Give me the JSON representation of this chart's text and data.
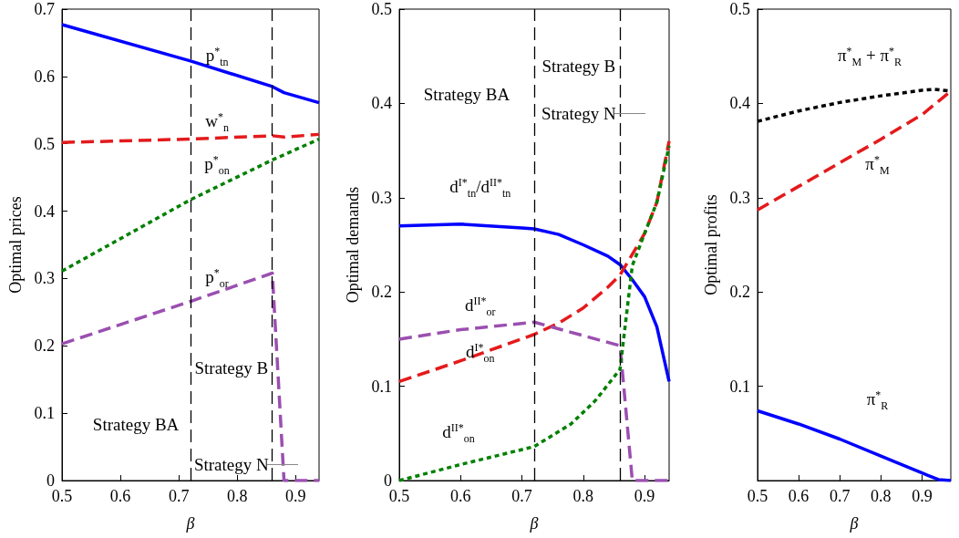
{
  "chart_data": [
    {
      "type": "line",
      "xlabel": "β",
      "ylabel": "Optimal prices",
      "xlim": [
        0.5,
        0.94
      ],
      "ylim": [
        0,
        0.7
      ],
      "xticks": [
        0.5,
        0.6,
        0.7,
        0.8,
        0.9
      ],
      "yticks": [
        0,
        0.1,
        0.2,
        0.3,
        0.4,
        0.5,
        0.6,
        0.7
      ],
      "grid": false,
      "legend": false,
      "marker": "none",
      "series": [
        {
          "name": "p$^{*}$$_{tn}$",
          "color": "#0000ff",
          "line_style": "solid",
          "x": [
            0.5,
            0.72,
            0.86,
            0.88,
            0.94
          ],
          "values": [
            0.677,
            0.623,
            0.585,
            0.576,
            0.561
          ]
        },
        {
          "name": "w$^{*}$$_{n}$",
          "color": "#e41a1c",
          "line_style": "dashed",
          "x": [
            0.5,
            0.72,
            0.86,
            0.88,
            0.94
          ],
          "values": [
            0.502,
            0.507,
            0.512,
            0.51,
            0.514
          ]
        },
        {
          "name": "p$^{*}$$_{on}$",
          "color": "#008000",
          "line_style": "dotted",
          "x": [
            0.5,
            0.72,
            0.86,
            0.94
          ],
          "values": [
            0.311,
            0.417,
            0.476,
            0.507
          ]
        },
        {
          "name": "p$^{*}$$_{or}$",
          "color": "#9b4fb0",
          "line_style": "dashed",
          "x": [
            0.5,
            0.72,
            0.86,
            0.88,
            0.94
          ],
          "values": [
            0.203,
            0.266,
            0.308,
            0,
            0
          ]
        }
      ],
      "ref_lines": [
        {
          "axis": "x",
          "value": 0.72,
          "color": "#000000",
          "line_style": "dashed"
        },
        {
          "axis": "x",
          "value": 0.86,
          "color": "#000000",
          "line_style": "dashed"
        }
      ],
      "annotations": [
        "Strategy BA",
        "Strategy B",
        "Strategy N"
      ]
    },
    {
      "type": "line",
      "xlabel": "β",
      "ylabel": "Optimal demands",
      "xlim": [
        0.5,
        0.94
      ],
      "ylim": [
        0,
        0.5
      ],
      "xticks": [
        0.5,
        0.6,
        0.7,
        0.8,
        0.9
      ],
      "yticks": [
        0,
        0.1,
        0.2,
        0.3,
        0.4,
        0.5
      ],
      "grid": false,
      "legend": false,
      "marker": "none",
      "series": [
        {
          "name": "d$^{I*}$$_{tn}$/d$^{II*}$$_{tn}$",
          "color": "#0000ff",
          "line_style": "solid",
          "x": [
            0.5,
            0.6,
            0.7,
            0.72,
            0.76,
            0.8,
            0.84,
            0.86,
            0.88,
            0.9,
            0.92,
            0.94
          ],
          "values": [
            0.27,
            0.272,
            0.268,
            0.267,
            0.261,
            0.25,
            0.238,
            0.229,
            0.213,
            0.195,
            0.163,
            0.105
          ]
        },
        {
          "name": "d$^{I*}$$_{on}$",
          "color": "#e41a1c",
          "line_style": "dashed",
          "x": [
            0.5,
            0.6,
            0.72,
            0.76,
            0.8,
            0.84,
            0.86,
            0.88,
            0.9,
            0.92,
            0.94
          ],
          "values": [
            0.105,
            0.127,
            0.155,
            0.167,
            0.183,
            0.205,
            0.218,
            0.24,
            0.262,
            0.295,
            0.36
          ]
        },
        {
          "name": "d$^{II*}$$_{or}$",
          "color": "#9b4fb0",
          "line_style": "dashed",
          "x": [
            0.5,
            0.6,
            0.72,
            0.86,
            0.88,
            0.94
          ],
          "values": [
            0.15,
            0.16,
            0.168,
            0.143,
            0,
            0
          ]
        },
        {
          "name": "d$^{II*}$$_{on}$",
          "color": "#008000",
          "line_style": "dotted",
          "x": [
            0.5,
            0.6,
            0.72,
            0.78,
            0.82,
            0.86,
            0.88,
            0.9,
            0.92,
            0.94
          ],
          "values": [
            0,
            0.017,
            0.036,
            0.06,
            0.085,
            0.118,
            0.228,
            0.262,
            0.295,
            0.355
          ]
        }
      ],
      "ref_lines": [
        {
          "axis": "x",
          "value": 0.72,
          "color": "#000000",
          "line_style": "dashed"
        },
        {
          "axis": "x",
          "value": 0.86,
          "color": "#000000",
          "line_style": "dashed"
        }
      ],
      "annotations": [
        "Strategy BA",
        "Strategy B",
        "Strategy N"
      ]
    },
    {
      "type": "line",
      "xlabel": "β",
      "ylabel": "Optimal profits",
      "xlim": [
        0.5,
        0.97
      ],
      "ylim": [
        0,
        0.5
      ],
      "xticks": [
        0.5,
        0.6,
        0.7,
        0.8,
        0.9
      ],
      "yticks": [
        0.1,
        0.2,
        0.3,
        0.4,
        0.5
      ],
      "grid": false,
      "legend": false,
      "marker": "none",
      "series": [
        {
          "name": "π$^{*}$$_{M}$ + π$^{*}$$_{R}$",
          "color": "#000000",
          "line_style": "dotted",
          "x": [
            0.5,
            0.6,
            0.7,
            0.8,
            0.9,
            0.93,
            0.97
          ],
          "values": [
            0.381,
            0.392,
            0.401,
            0.408,
            0.414,
            0.415,
            0.413
          ]
        },
        {
          "name": "π$^{*}$$_{M}$",
          "color": "#e41a1c",
          "line_style": "dashed",
          "x": [
            0.5,
            0.6,
            0.7,
            0.8,
            0.9,
            0.97
          ],
          "values": [
            0.287,
            0.312,
            0.337,
            0.362,
            0.388,
            0.413
          ]
        },
        {
          "name": "π$^{*}$$_{R}$",
          "color": "#0000ff",
          "line_style": "solid",
          "x": [
            0.5,
            0.6,
            0.7,
            0.8,
            0.9,
            0.94,
            0.97
          ],
          "values": [
            0.074,
            0.06,
            0.044,
            0.026,
            0.008,
            0.001,
            0
          ]
        }
      ]
    }
  ]
}
